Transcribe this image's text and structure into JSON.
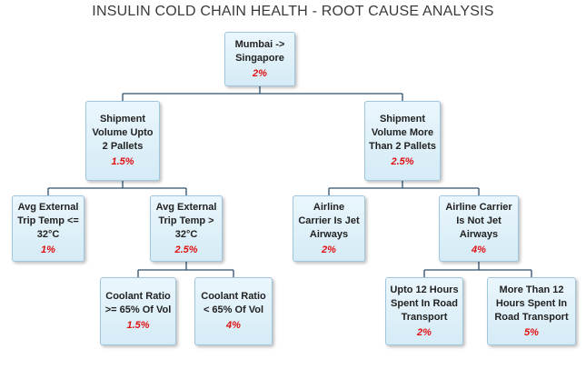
{
  "title": "INSULIN COLD CHAIN HEALTH - ROOT CAUSE ANALYSIS",
  "nodes": {
    "root": {
      "label": "Mumbai -> Singapore",
      "value": "2%"
    },
    "upto2": {
      "label": "Shipment Volume Upto 2 Pallets",
      "value": "1.5%"
    },
    "more2": {
      "label": "Shipment Volume More Than 2 Pallets",
      "value": "2.5%"
    },
    "temp_low": {
      "label": "Avg External Trip Temp <= 32°C",
      "value": "1%"
    },
    "temp_high": {
      "label": "Avg External Trip Temp > 32°C",
      "value": "2.5%"
    },
    "jet": {
      "label": "Airline Carrier Is Jet Airways",
      "value": "2%"
    },
    "not_jet": {
      "label": "Airline Carrier Is Not Jet Airways",
      "value": "4%"
    },
    "coolant_high": {
      "label": "Coolant Ratio >= 65% Of Vol",
      "value": "1.5%"
    },
    "coolant_low": {
      "label": "Coolant Ratio < 65% Of Vol",
      "value": "4%"
    },
    "road_upto12": {
      "label": "Upto 12 Hours Spent In Road Transport",
      "value": "2%"
    },
    "road_more12": {
      "label": "More Than 12 Hours Spent In Road Transport",
      "value": "5%"
    }
  }
}
